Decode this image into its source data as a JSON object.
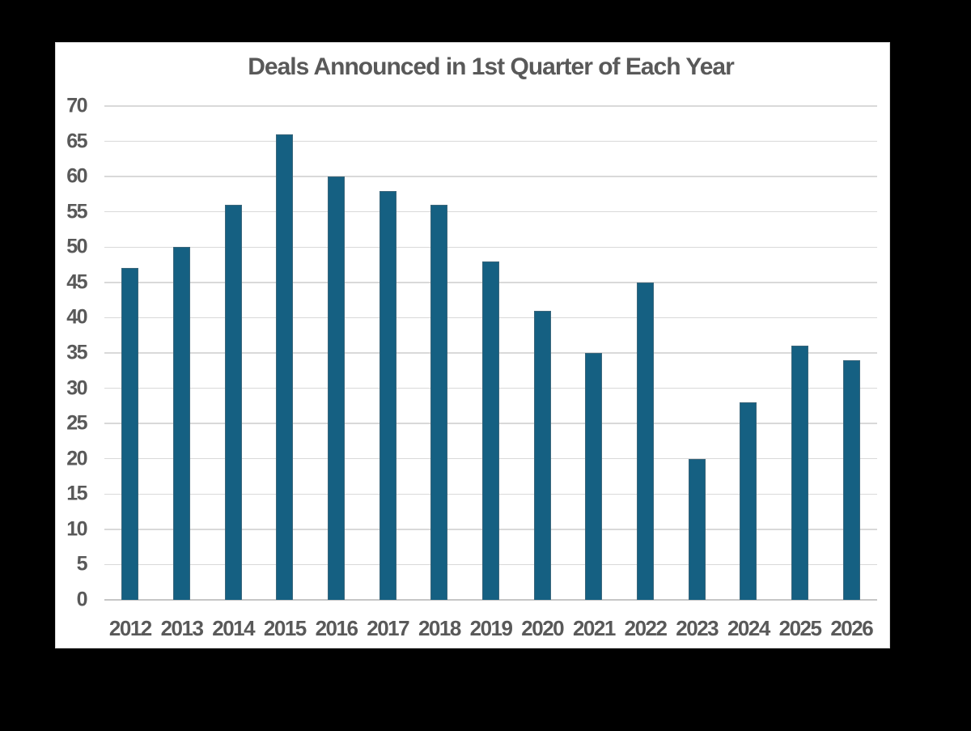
{
  "chart_data": {
    "type": "bar",
    "title": "Deals Announced in 1st Quarter of Each Year",
    "categories": [
      "2012",
      "2013",
      "2014",
      "2015",
      "2016",
      "2017",
      "2018",
      "2019",
      "2020",
      "2021",
      "2022",
      "2023",
      "2024",
      "2025",
      "2026"
    ],
    "values": [
      47,
      50,
      56,
      66,
      60,
      58,
      56,
      48,
      41,
      35,
      45,
      20,
      28,
      36,
      34
    ],
    "xlabel": "",
    "ylabel": "",
    "ylim": [
      0,
      70
    ],
    "ytick_step": 5,
    "yticks": [
      0,
      5,
      10,
      15,
      20,
      25,
      30,
      35,
      40,
      45,
      50,
      55,
      60,
      65,
      70
    ],
    "grid": "horizontal",
    "legend": "none",
    "series_name": "Deals"
  },
  "colors": {
    "bar": "#156082",
    "title": "#595959",
    "axis_label": "#595959",
    "gridline": "#d9d9d9",
    "axis_line": "#c6c6c6",
    "chart_bg": "#ffffff",
    "page_bg": "#000000"
  }
}
